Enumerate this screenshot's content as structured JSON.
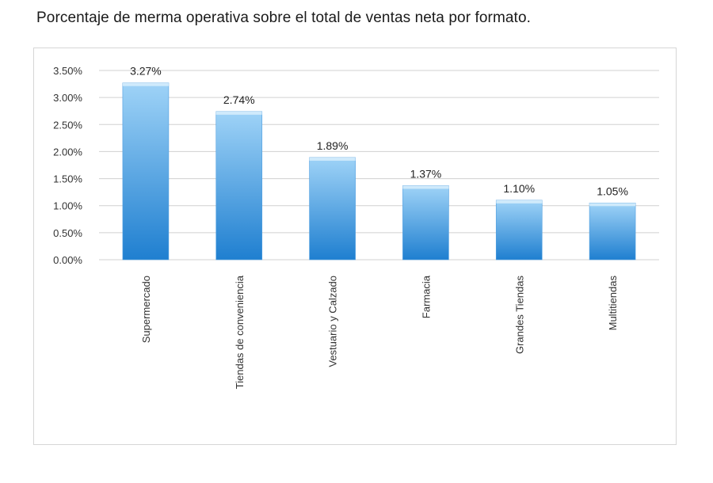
{
  "title": "Porcentaje de merma operativa sobre el total de ventas neta por formato.",
  "chart_data": {
    "type": "bar",
    "title": "Porcentaje de merma operativa sobre el total de ventas neta por formato.",
    "xlabel": "",
    "ylabel": "",
    "categories": [
      "Supermercado",
      "Tiendas de conveniencia",
      "Vestuario y Calzado",
      "Farmacia",
      "Grandes Tiendas",
      "Multitiendas"
    ],
    "values": [
      3.27,
      2.74,
      1.89,
      1.37,
      1.1,
      1.05
    ],
    "data_labels": [
      "3.27%",
      "2.74%",
      "1.89%",
      "1.37%",
      "1.10%",
      "1.05%"
    ],
    "ylim": [
      0,
      3.5
    ],
    "yticks": [
      0,
      0.5,
      1.0,
      1.5,
      2.0,
      2.5,
      3.0,
      3.5
    ],
    "ytick_labels": [
      "0.00%",
      "0.50%",
      "1.00%",
      "1.50%",
      "2.00%",
      "2.50%",
      "3.00%",
      "3.50%"
    ],
    "grid": true,
    "legend": "none",
    "bar_color_top": "#9fd3f7",
    "bar_color_bottom": "#1f7fd0"
  }
}
